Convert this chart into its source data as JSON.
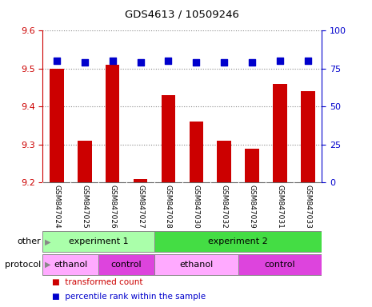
{
  "title": "GDS4613 / 10509246",
  "samples": [
    "GSM847024",
    "GSM847025",
    "GSM847026",
    "GSM847027",
    "GSM847028",
    "GSM847030",
    "GSM847032",
    "GSM847029",
    "GSM847031",
    "GSM847033"
  ],
  "bar_values": [
    9.5,
    9.31,
    9.51,
    9.21,
    9.43,
    9.36,
    9.31,
    9.29,
    9.46,
    9.44
  ],
  "percentile_values": [
    80,
    79,
    80,
    79,
    80,
    79,
    79,
    79,
    80,
    80
  ],
  "ylim_left": [
    9.2,
    9.6
  ],
  "ylim_right": [
    0,
    100
  ],
  "yticks_left": [
    9.2,
    9.3,
    9.4,
    9.5,
    9.6
  ],
  "yticks_right": [
    0,
    25,
    50,
    75,
    100
  ],
  "bar_color": "#cc0000",
  "dot_color": "#0000cc",
  "bar_width": 0.5,
  "dot_size": 30,
  "experiment_groups": [
    {
      "label": "experiment 1",
      "start": 0,
      "end": 3,
      "color": "#aaffaa"
    },
    {
      "label": "experiment 2",
      "start": 4,
      "end": 9,
      "color": "#44dd44"
    }
  ],
  "protocol_groups": [
    {
      "label": "ethanol",
      "start": 0,
      "end": 1,
      "color": "#ffaaff"
    },
    {
      "label": "control",
      "start": 2,
      "end": 3,
      "color": "#dd44dd"
    },
    {
      "label": "ethanol",
      "start": 4,
      "end": 6,
      "color": "#ffaaff"
    },
    {
      "label": "control",
      "start": 7,
      "end": 9,
      "color": "#dd44dd"
    }
  ],
  "legend_items": [
    {
      "label": "transformed count",
      "color": "#cc0000"
    },
    {
      "label": "percentile rank within the sample",
      "color": "#0000cc"
    }
  ],
  "axis_left_color": "#cc0000",
  "axis_right_color": "#0000cc",
  "background_color": "#ffffff",
  "plot_bg_color": "#ffffff",
  "grid_color": "#888888",
  "sample_bg_color": "#cccccc",
  "sample_divider_color": "#aaaaaa"
}
